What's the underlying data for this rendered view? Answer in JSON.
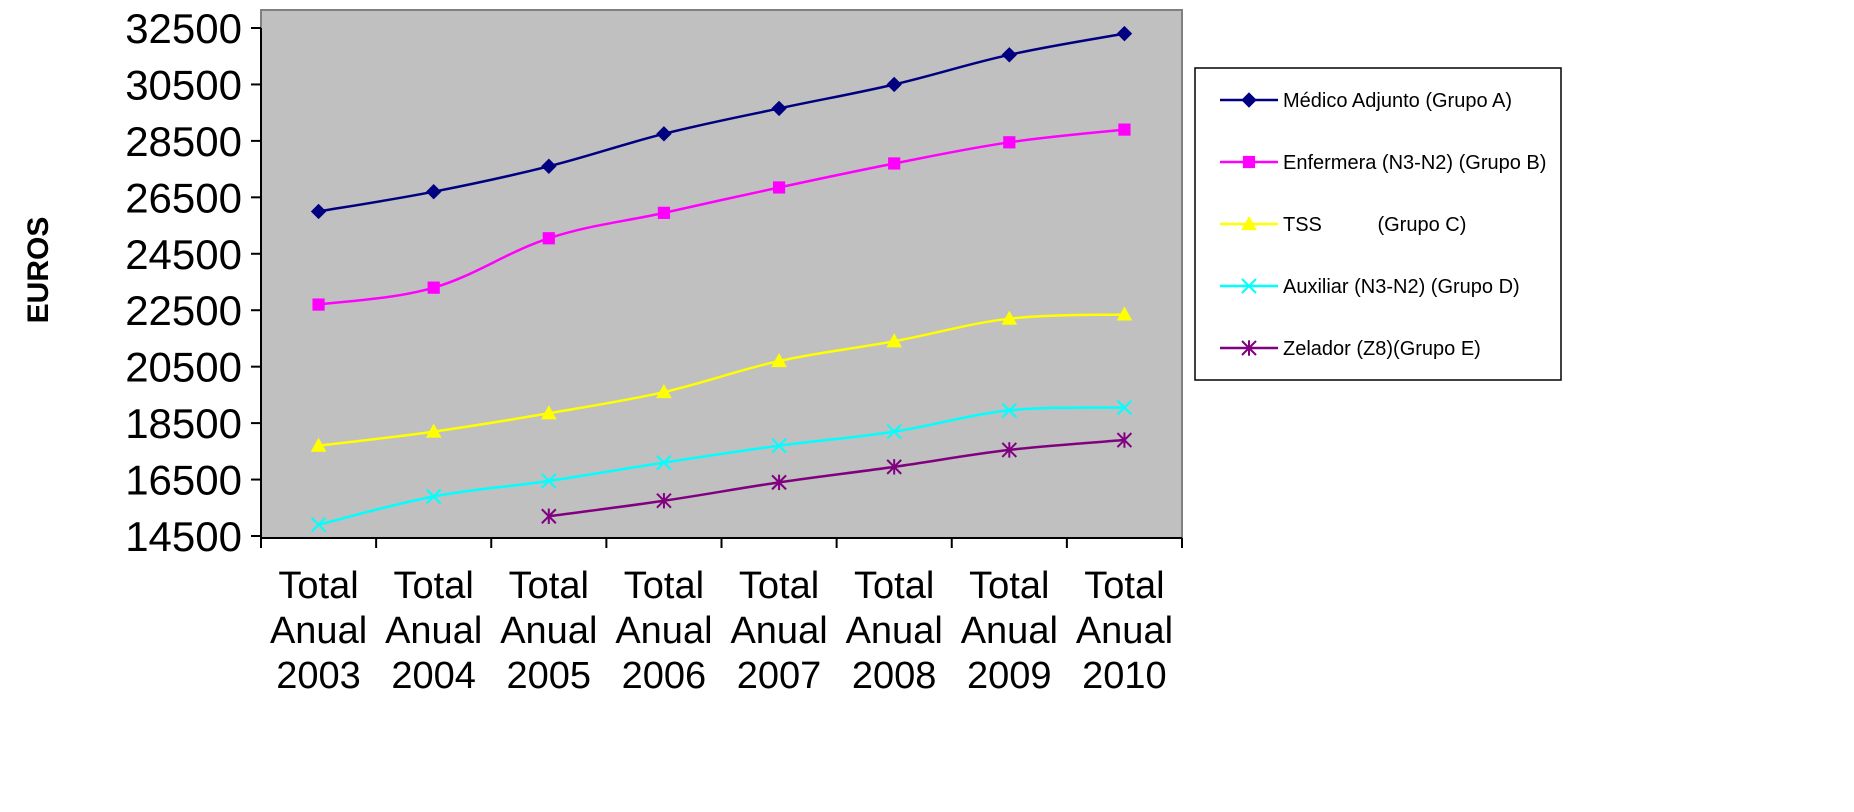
{
  "chart_data": {
    "type": "line",
    "title": "",
    "xlabel": "",
    "ylabel": "EUROS",
    "categories": [
      [
        "Total",
        "Anual",
        "2003"
      ],
      [
        "Total",
        "Anual",
        "2004"
      ],
      [
        "Total",
        "Anual",
        "2005"
      ],
      [
        "Total",
        "Anual",
        "2006"
      ],
      [
        "Total",
        "Anual",
        "2007"
      ],
      [
        "Total",
        "Anual",
        "2008"
      ],
      [
        "Total",
        "Anual",
        "2009"
      ],
      [
        "Total",
        "Anual",
        "2010"
      ]
    ],
    "ylim": [
      14500,
      32500
    ],
    "yticks": [
      14500,
      16500,
      18500,
      20500,
      22500,
      24500,
      26500,
      28500,
      30500,
      32500
    ],
    "plot_background": "#c0c0c0",
    "grid": false,
    "legend_position": "right",
    "series": [
      {
        "name": "Médico Adjunto (Grupo A)",
        "color": "#000080",
        "marker": "diamond",
        "values": [
          26000,
          26700,
          27600,
          28750,
          29650,
          30500,
          31550,
          32300
        ]
      },
      {
        "name": "Enfermera (N3-N2) (Grupo B)",
        "color": "#ff00ff",
        "marker": "square",
        "values": [
          22700,
          23300,
          25050,
          25950,
          26850,
          27700,
          28450,
          28900
        ]
      },
      {
        "name": "TSS          (Grupo C)",
        "color": "#ffff00",
        "marker": "triangle",
        "values": [
          17700,
          18200,
          18850,
          19600,
          20700,
          21400,
          22200,
          22350
        ]
      },
      {
        "name": "Auxiliar (N3-N2) (Grupo D)",
        "color": "#00ffff",
        "marker": "x",
        "values": [
          14900,
          15900,
          16450,
          17100,
          17700,
          18200,
          18950,
          19050
        ]
      },
      {
        "name": "Zelador (Z8)(Grupo E)",
        "color": "#800080",
        "marker": "asterisk",
        "values": [
          null,
          null,
          15200,
          15750,
          16400,
          16950,
          17550,
          17900
        ]
      }
    ]
  }
}
